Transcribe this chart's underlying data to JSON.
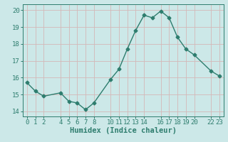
{
  "xlabel": "Humidex (Indice chaleur)",
  "ylabel": "",
  "x": [
    0,
    1,
    2,
    4,
    5,
    6,
    7,
    8,
    10,
    11,
    12,
    13,
    14,
    15,
    16,
    17,
    18,
    19,
    20,
    22,
    23
  ],
  "y": [
    15.7,
    15.2,
    14.9,
    15.1,
    14.6,
    14.5,
    14.1,
    14.5,
    15.9,
    16.5,
    17.7,
    18.8,
    19.7,
    19.55,
    19.95,
    19.55,
    18.4,
    17.7,
    17.35,
    16.4,
    16.1
  ],
  "line_color": "#2e7d6e",
  "bg_color": "#cce8e8",
  "grid_color_h": "#d4b8b8",
  "grid_color_v": "#d4b8b8",
  "tick_label_color": "#2e7d6e",
  "xlim": [
    -0.5,
    23.5
  ],
  "ylim": [
    13.7,
    20.35
  ],
  "yticks": [
    14,
    15,
    16,
    17,
    18,
    19,
    20
  ],
  "xticks": [
    0,
    1,
    2,
    4,
    5,
    6,
    7,
    8,
    10,
    11,
    12,
    13,
    14,
    16,
    17,
    18,
    19,
    20,
    22,
    23
  ],
  "marker": "D",
  "marker_size": 2.5,
  "line_width": 1.0,
  "tick_fontsize": 6.5,
  "xlabel_fontsize": 7.5
}
